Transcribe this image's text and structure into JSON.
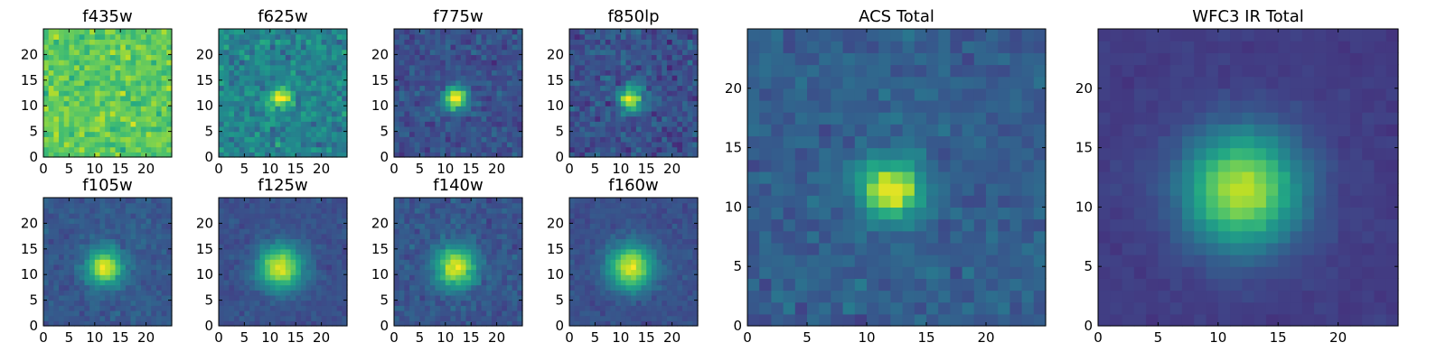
{
  "figure": {
    "colormap": "viridis",
    "background": "#ffffff"
  },
  "chart_data": [
    {
      "type": "heatmap",
      "title": "f435w",
      "xlabel": "",
      "ylabel": "",
      "xticks": [
        0,
        5,
        10,
        15,
        20
      ],
      "yticks": [
        0,
        5,
        10,
        15,
        20
      ],
      "xlim": [
        0,
        25
      ],
      "ylim": [
        0,
        25
      ],
      "grid_size": [
        25,
        25
      ],
      "source_center": [
        12,
        11
      ],
      "source_width": 2.0,
      "peak": 0.0,
      "base": 0.75,
      "noise": 0.2,
      "seed": 11
    },
    {
      "type": "heatmap",
      "title": "f625w",
      "xlabel": "",
      "ylabel": "",
      "xticks": [
        0,
        5,
        10,
        15,
        20
      ],
      "yticks": [
        0,
        5,
        10,
        15,
        20
      ],
      "xlim": [
        0,
        25
      ],
      "ylim": [
        0,
        25
      ],
      "grid_size": [
        25,
        25
      ],
      "source_center": [
        12,
        11.5
      ],
      "source_width": 1.3,
      "peak": 0.6,
      "base": 0.45,
      "noise": 0.22,
      "seed": 23
    },
    {
      "type": "heatmap",
      "title": "f775w",
      "xlabel": "",
      "ylabel": "",
      "xticks": [
        0,
        5,
        10,
        15,
        20
      ],
      "yticks": [
        0,
        5,
        10,
        15,
        20
      ],
      "xlim": [
        0,
        25
      ],
      "ylim": [
        0,
        25
      ],
      "grid_size": [
        25,
        25
      ],
      "source_center": [
        12,
        11.5
      ],
      "source_width": 1.6,
      "peak": 0.75,
      "base": 0.25,
      "noise": 0.15,
      "seed": 37
    },
    {
      "type": "heatmap",
      "title": "f850lp",
      "xlabel": "",
      "ylabel": "",
      "xticks": [
        0,
        5,
        10,
        15,
        20
      ],
      "yticks": [
        0,
        5,
        10,
        15,
        20
      ],
      "xlim": [
        0,
        25
      ],
      "ylim": [
        0,
        25
      ],
      "grid_size": [
        25,
        25
      ],
      "source_center": [
        12,
        11.5
      ],
      "source_width": 1.6,
      "peak": 0.72,
      "base": 0.25,
      "noise": 0.18,
      "seed": 41
    },
    {
      "type": "heatmap",
      "title": "f105w",
      "xlabel": "",
      "ylabel": "",
      "xticks": [
        0,
        5,
        10,
        15,
        20
      ],
      "yticks": [
        0,
        5,
        10,
        15,
        20
      ],
      "xlim": [
        0,
        25
      ],
      "ylim": [
        0,
        25
      ],
      "grid_size": [
        25,
        25
      ],
      "source_center": [
        12,
        11.5
      ],
      "source_width": 2.4,
      "peak": 0.7,
      "base": 0.28,
      "noise": 0.1,
      "seed": 53
    },
    {
      "type": "heatmap",
      "title": "f125w",
      "xlabel": "",
      "ylabel": "",
      "xticks": [
        0,
        5,
        10,
        15,
        20
      ],
      "yticks": [
        0,
        5,
        10,
        15,
        20
      ],
      "xlim": [
        0,
        25
      ],
      "ylim": [
        0,
        25
      ],
      "grid_size": [
        25,
        25
      ],
      "source_center": [
        12,
        11.5
      ],
      "source_width": 3.0,
      "peak": 0.7,
      "base": 0.25,
      "noise": 0.08,
      "seed": 67
    },
    {
      "type": "heatmap",
      "title": "f140w",
      "xlabel": "",
      "ylabel": "",
      "xticks": [
        0,
        5,
        10,
        15,
        20
      ],
      "yticks": [
        0,
        5,
        10,
        15,
        20
      ],
      "xlim": [
        0,
        25
      ],
      "ylim": [
        0,
        25
      ],
      "grid_size": [
        25,
        25
      ],
      "source_center": [
        12,
        11.5
      ],
      "source_width": 2.7,
      "peak": 0.7,
      "base": 0.27,
      "noise": 0.12,
      "seed": 79
    },
    {
      "type": "heatmap",
      "title": "f160w",
      "xlabel": "",
      "ylabel": "",
      "xticks": [
        0,
        5,
        10,
        15,
        20
      ],
      "yticks": [
        0,
        5,
        10,
        15,
        20
      ],
      "xlim": [
        0,
        25
      ],
      "ylim": [
        0,
        25
      ],
      "grid_size": [
        25,
        25
      ],
      "source_center": [
        12,
        11.5
      ],
      "source_width": 3.0,
      "peak": 0.7,
      "base": 0.25,
      "noise": 0.08,
      "seed": 83
    },
    {
      "type": "heatmap",
      "title": "ACS Total",
      "xlabel": "",
      "ylabel": "",
      "xticks": [
        0,
        5,
        10,
        15,
        20
      ],
      "yticks": [
        0,
        5,
        10,
        15,
        20
      ],
      "xlim": [
        0,
        25
      ],
      "ylim": [
        0,
        25
      ],
      "grid_size": [
        25,
        25
      ],
      "source_center": [
        12,
        11.5
      ],
      "source_width": 1.7,
      "peak": 0.72,
      "base": 0.3,
      "noise": 0.12,
      "seed": 97
    },
    {
      "type": "heatmap",
      "title": "WFC3 IR Total",
      "xlabel": "",
      "ylabel": "",
      "xticks": [
        0,
        5,
        10,
        15,
        20
      ],
      "yticks": [
        0,
        5,
        10,
        15,
        20
      ],
      "xlim": [
        0,
        25
      ],
      "ylim": [
        0,
        25
      ],
      "grid_size": [
        25,
        25
      ],
      "source_center": [
        12,
        11.5
      ],
      "source_width": 3.4,
      "peak": 0.72,
      "base": 0.18,
      "noise": 0.04,
      "seed": 101
    }
  ]
}
